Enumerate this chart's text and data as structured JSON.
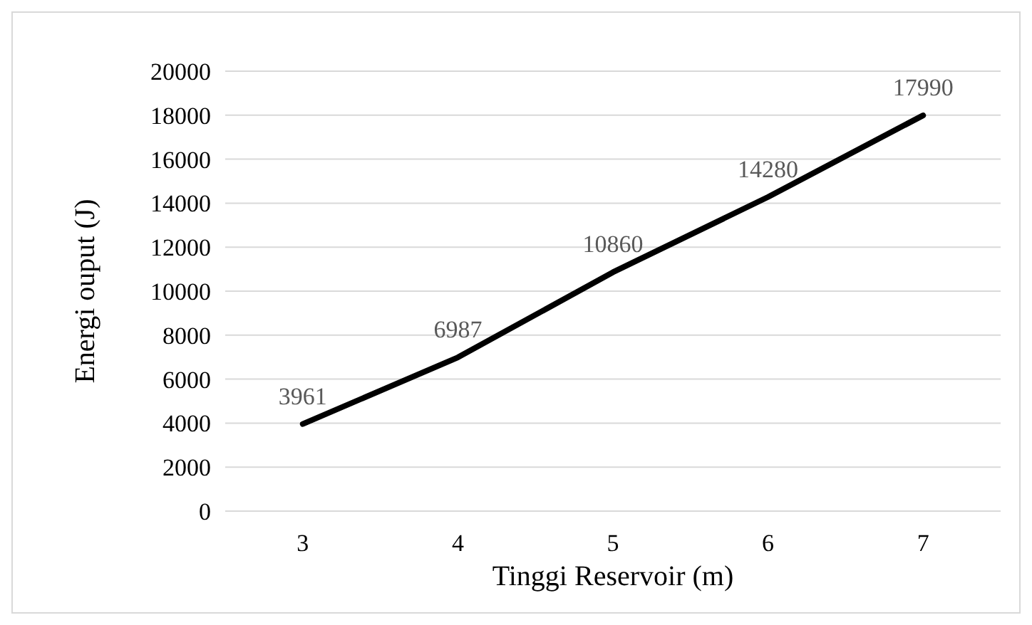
{
  "chart_data": {
    "type": "line",
    "xlabel": "Tinggi Reservoir (m)",
    "ylabel": "Energi ouput (J)",
    "categories": [
      "3",
      "4",
      "5",
      "6",
      "7"
    ],
    "series": [
      {
        "color": "#000000",
        "values": [
          3961,
          6987,
          10860,
          14280,
          17990
        ]
      }
    ],
    "ylim": [
      0,
      20000
    ],
    "yticks": [
      0,
      2000,
      4000,
      6000,
      8000,
      10000,
      12000,
      14000,
      16000,
      18000,
      20000
    ],
    "grid": "y",
    "marker": "none",
    "line_style": "solid",
    "data_labels": true
  }
}
